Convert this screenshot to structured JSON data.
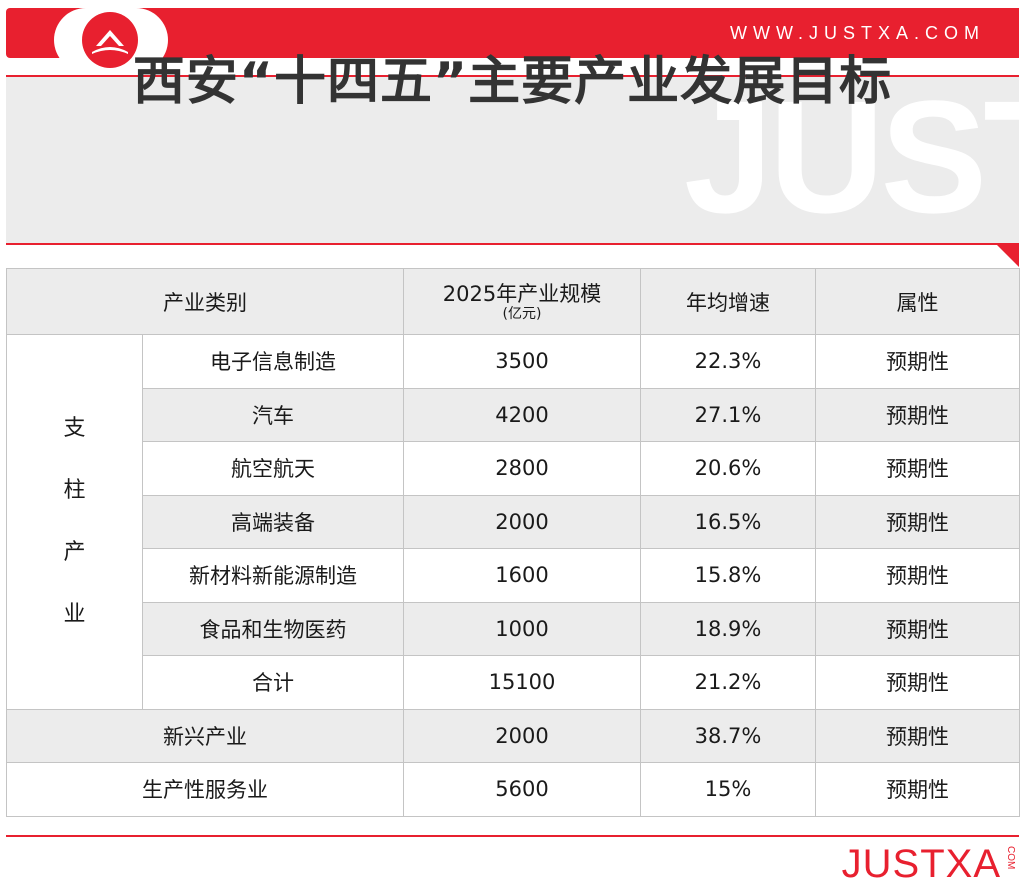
{
  "header": {
    "site_url": "WWW.JUSTXA.COM",
    "logo_icon": "mountain-logo-icon",
    "accent_color": "#e8202f"
  },
  "title": {
    "text": "西安“十四五”主要产业发展目标",
    "watermark": "JUSTXA"
  },
  "table": {
    "headers": {
      "category": "产业类别",
      "scale": "2025年产业规模",
      "scale_unit": "(亿元)",
      "growth": "年均增速",
      "attribute": "属性"
    },
    "pillar_group": [
      "支",
      "柱",
      "产",
      "业"
    ],
    "pillar_rows": [
      {
        "name": "电子信息制造",
        "scale": "3500",
        "growth": "22.3%",
        "attribute": "预期性"
      },
      {
        "name": "汽车",
        "scale": "4200",
        "growth": "27.1%",
        "attribute": "预期性"
      },
      {
        "name": "航空航天",
        "scale": "2800",
        "growth": "20.6%",
        "attribute": "预期性"
      },
      {
        "name": "高端装备",
        "scale": "2000",
        "growth": "16.5%",
        "attribute": "预期性"
      },
      {
        "name": "新材料新能源制造",
        "scale": "1600",
        "growth": "15.8%",
        "attribute": "预期性"
      },
      {
        "name": "食品和生物医药",
        "scale": "1000",
        "growth": "18.9%",
        "attribute": "预期性"
      },
      {
        "name": "合计",
        "scale": "15100",
        "growth": "21.2%",
        "attribute": "预期性"
      }
    ],
    "other_rows": [
      {
        "name": "新兴产业",
        "scale": "2000",
        "growth": "38.7%",
        "attribute": "预期性"
      },
      {
        "name": "生产性服务业",
        "scale": "5600",
        "growth": "15%",
        "attribute": "预期性"
      }
    ]
  },
  "footer": {
    "logo_text": "JUSTXA",
    "logo_suffix": "COM"
  }
}
